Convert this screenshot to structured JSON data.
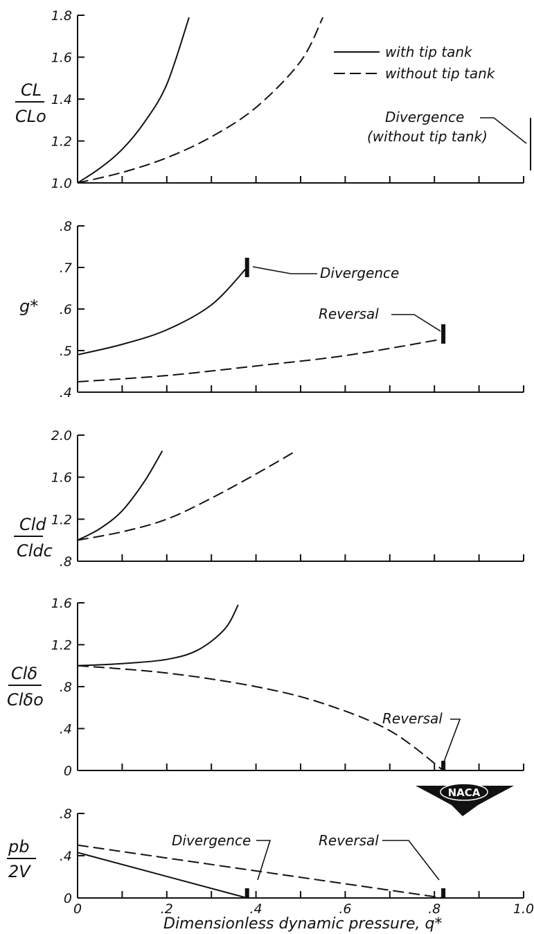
{
  "chart_data": [
    {
      "type": "line",
      "ylabel_num": "CL",
      "ylabel_den": "CLo",
      "ylim": [
        1.0,
        1.8
      ],
      "xlim": [
        0,
        1.0
      ],
      "y_ticks": [
        "1.0",
        "1.2",
        "1.4",
        "1.6",
        "1.8"
      ],
      "legend": [
        {
          "label": "with tip tank",
          "style": "solid"
        },
        {
          "label": "without tip tank",
          "style": "dashed"
        }
      ],
      "legend_position": "top-right",
      "series": [
        {
          "name": "with tip tank",
          "style": "solid",
          "x": [
            0,
            0.05,
            0.1,
            0.15,
            0.2,
            0.25
          ],
          "y": [
            1.0,
            1.07,
            1.16,
            1.29,
            1.47,
            1.79
          ]
        },
        {
          "name": "without tip tank",
          "style": "dashed",
          "x": [
            0,
            0.1,
            0.2,
            0.3,
            0.4,
            0.5,
            0.55
          ],
          "y": [
            1.0,
            1.05,
            1.12,
            1.22,
            1.36,
            1.58,
            1.79
          ]
        }
      ],
      "annotations": [
        {
          "text": "Divergence",
          "text2": "(without tip tank)",
          "x": 1.0,
          "y": 1.18
        }
      ]
    },
    {
      "type": "line",
      "ylabel": "g*",
      "ylim": [
        0.4,
        0.8
      ],
      "xlim": [
        0,
        1.0
      ],
      "y_ticks": [
        ".4",
        ".5",
        ".6",
        ".7",
        ".8"
      ],
      "series": [
        {
          "name": "with tip tank",
          "style": "solid",
          "x": [
            0,
            0.1,
            0.2,
            0.3,
            0.38
          ],
          "y": [
            0.49,
            0.515,
            0.55,
            0.61,
            0.7
          ]
        },
        {
          "name": "without tip tank",
          "style": "dashed",
          "x": [
            0,
            0.2,
            0.4,
            0.6,
            0.82
          ],
          "y": [
            0.425,
            0.44,
            0.463,
            0.488,
            0.528
          ]
        }
      ],
      "annotations": [
        {
          "text": "Divergence",
          "x": 0.38,
          "y": 0.7
        },
        {
          "text": "Reversal",
          "x": 0.82,
          "y": 0.54
        }
      ]
    },
    {
      "type": "line",
      "ylabel_num": "Cld",
      "ylabel_den": "Cldc",
      "ylim": [
        0.8,
        2.0
      ],
      "xlim": [
        0,
        1.0
      ],
      "y_ticks": [
        ".8",
        "1.2",
        "1.6",
        "2.0"
      ],
      "series": [
        {
          "name": "with tip tank",
          "style": "solid",
          "x": [
            0,
            0.05,
            0.1,
            0.15,
            0.19
          ],
          "y": [
            1.0,
            1.11,
            1.28,
            1.56,
            1.85
          ]
        },
        {
          "name": "without tip tank",
          "style": "dashed",
          "x": [
            0,
            0.1,
            0.2,
            0.3,
            0.4,
            0.49
          ],
          "y": [
            1.0,
            1.08,
            1.2,
            1.4,
            1.63,
            1.85
          ]
        }
      ],
      "annotations": []
    },
    {
      "type": "line",
      "ylabel_num": "Clδ",
      "ylabel_den": "Clδo",
      "ylim": [
        0,
        1.6
      ],
      "xlim": [
        0,
        1.0
      ],
      "y_ticks": [
        "0",
        ".4",
        ".8",
        "1.2",
        "1.6"
      ],
      "series": [
        {
          "name": "with tip tank",
          "style": "solid",
          "x": [
            0,
            0.1,
            0.2,
            0.27,
            0.33,
            0.36
          ],
          "y": [
            1.0,
            1.02,
            1.06,
            1.15,
            1.35,
            1.58
          ]
        },
        {
          "name": "without tip tank",
          "style": "dashed",
          "x": [
            0,
            0.2,
            0.4,
            0.55,
            0.7,
            0.82
          ],
          "y": [
            1.0,
            0.93,
            0.8,
            0.64,
            0.38,
            0.0
          ]
        }
      ],
      "annotations": [
        {
          "text": "Reversal",
          "x": 0.82,
          "y": 0.0
        }
      ]
    },
    {
      "type": "line",
      "ylabel_num": "pb",
      "ylabel_den": "2V",
      "ylim": [
        0,
        0.8
      ],
      "xlim": [
        0,
        1.0
      ],
      "y_ticks": [
        "0",
        ".4",
        ".8"
      ],
      "x_ticks": [
        "0",
        ".2",
        ".4",
        ".6",
        ".8",
        "1.0"
      ],
      "xlabel": "Dimensionless dynamic pressure, q*",
      "series": [
        {
          "name": "with tip tank",
          "style": "solid",
          "x": [
            0,
            0.38
          ],
          "y": [
            0.43,
            0.0
          ]
        },
        {
          "name": "without tip tank",
          "style": "dashed",
          "x": [
            0,
            0.82
          ],
          "y": [
            0.5,
            0.0
          ]
        }
      ],
      "annotations": [
        {
          "text": "Divergence",
          "x": 0.38,
          "y": 0.0
        },
        {
          "text": "Reversal",
          "x": 0.82,
          "y": 0.0
        }
      ]
    }
  ],
  "logo": {
    "text": "NACA"
  }
}
